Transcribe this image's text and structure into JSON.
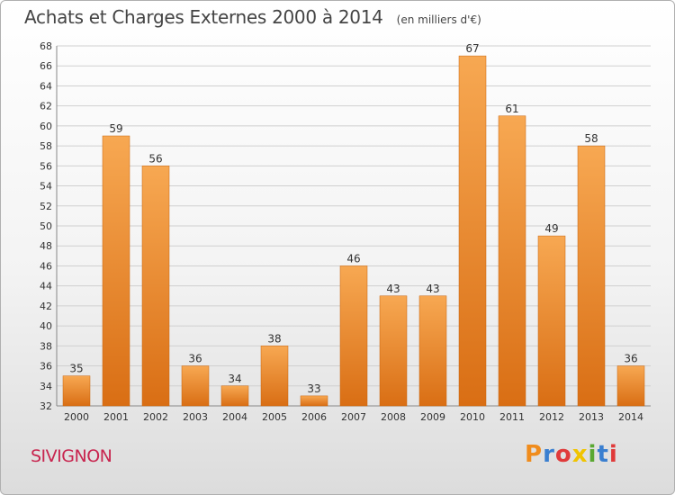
{
  "header": {
    "title": "Achats et Charges Externes 2000 à 2014",
    "unit": "(en milliers d'€)"
  },
  "footer": {
    "commune": "SIVIGNON",
    "logo_text": "Proxiti",
    "logo_colors": [
      "#f08c1c",
      "#3a7fd0",
      "#e03a3a",
      "#f0c400",
      "#5aa832",
      "#3a7fd0",
      "#e03a3a"
    ]
  },
  "chart_data": {
    "type": "bar",
    "categories": [
      "2000",
      "2001",
      "2002",
      "2003",
      "2004",
      "2005",
      "2006",
      "2007",
      "2008",
      "2009",
      "2010",
      "2011",
      "2012",
      "2013",
      "2014"
    ],
    "values": [
      35,
      59,
      56,
      36,
      34,
      38,
      33,
      46,
      43,
      43,
      67,
      61,
      49,
      58,
      36
    ],
    "ylim": [
      32,
      68
    ],
    "yticks": [
      32,
      34,
      36,
      38,
      40,
      42,
      44,
      46,
      48,
      50,
      52,
      54,
      56,
      58,
      60,
      62,
      64,
      66,
      68
    ],
    "grid": true,
    "legend": "none",
    "colors": {
      "bar_top": "#f7a852",
      "bar_bottom": "#d96e14",
      "grid": "#d0d0d0",
      "axis_text": "#333333"
    }
  }
}
